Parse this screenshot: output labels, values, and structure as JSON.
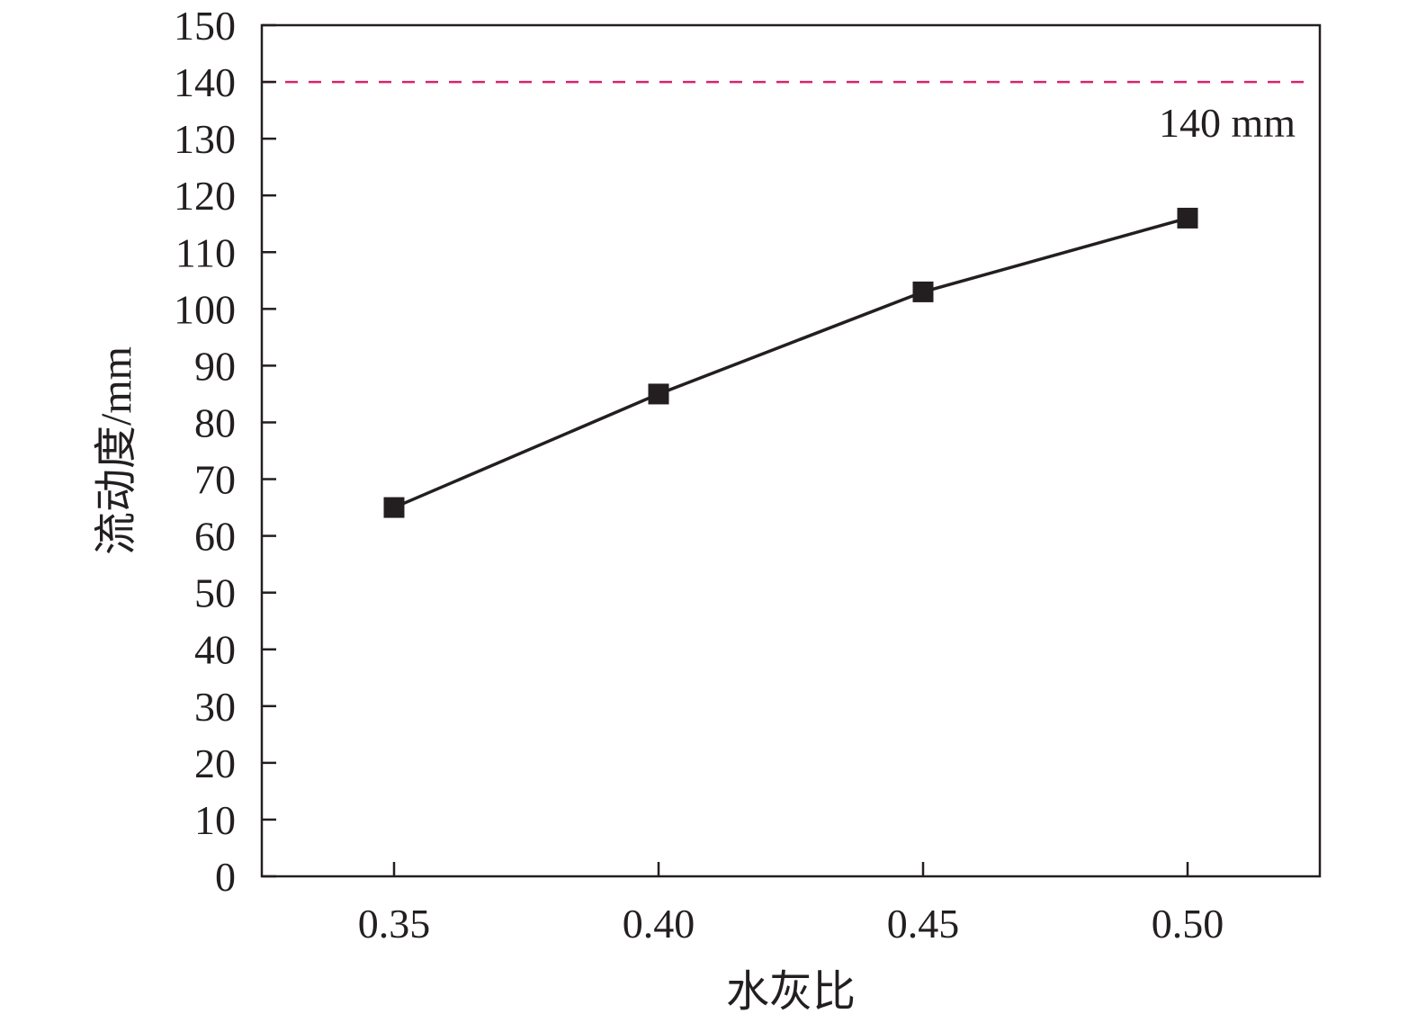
{
  "chart_data": {
    "type": "line",
    "title": "",
    "xlabel": "水灰比",
    "ylabel": "流动度/mm",
    "x": [
      0.35,
      0.4,
      0.45,
      0.5
    ],
    "x_tick_labels": [
      "0.35",
      "0.40",
      "0.45",
      "0.50"
    ],
    "xlim": [
      0.325,
      0.525
    ],
    "ylim": [
      0,
      150
    ],
    "y_ticks": [
      0,
      10,
      20,
      30,
      40,
      50,
      60,
      70,
      80,
      90,
      100,
      110,
      120,
      130,
      140,
      150
    ],
    "y_tick_labels": [
      "0",
      "10",
      "20",
      "30",
      "40",
      "50",
      "60",
      "70",
      "80",
      "90",
      "100",
      "110",
      "120",
      "130",
      "140",
      "150"
    ],
    "series": [
      {
        "values": [
          65,
          85,
          103,
          116
        ],
        "color": "#231f20",
        "marker": "square"
      }
    ],
    "reference_line": {
      "y": 140,
      "label": "140 mm",
      "color": "#d6246e",
      "style": "dashed"
    },
    "grid": false,
    "legend": "none"
  }
}
